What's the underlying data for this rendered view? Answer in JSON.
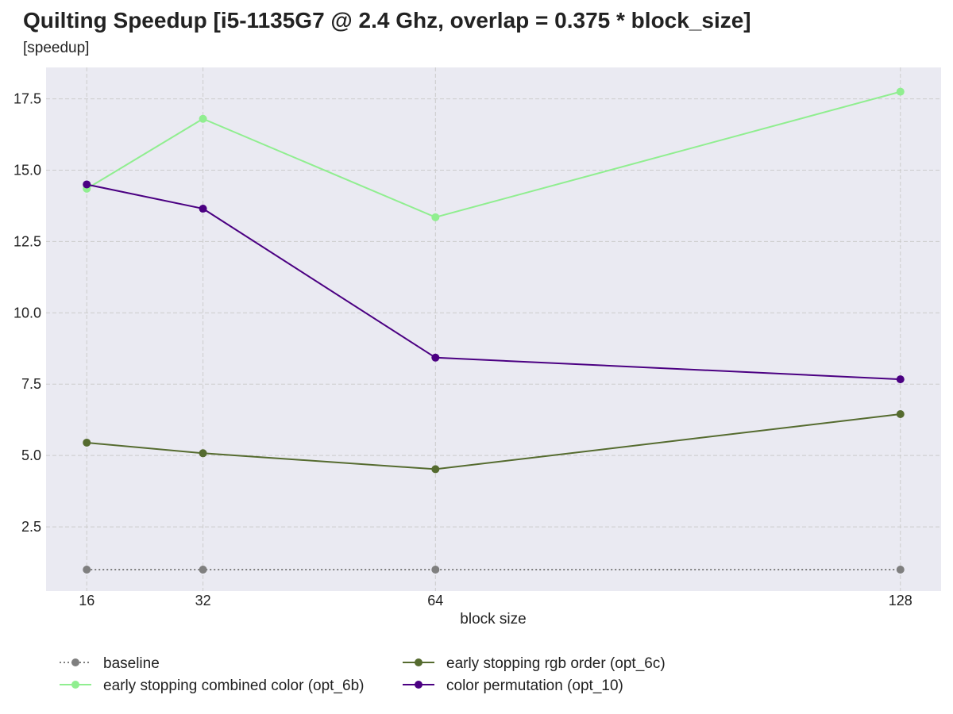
{
  "chart_data": {
    "type": "line",
    "title": "Quilting Speedup [i5-1135G7 @ 2.4 Ghz, overlap = 0.375 * block_size]",
    "ylabel": "[speedup]",
    "xlabel": "block size",
    "x": [
      16,
      32,
      64,
      128
    ],
    "xlim": [
      10.4,
      133.6
    ],
    "ylim": [
      0.25,
      18.6
    ],
    "yticks": [
      "2.5",
      "5.0",
      "7.5",
      "10.0",
      "12.5",
      "15.0",
      "17.5"
    ],
    "xticks": [
      "16",
      "32",
      "64",
      "128"
    ],
    "grid": true,
    "legend_position": "bottom",
    "series": [
      {
        "name": "baseline",
        "values": [
          1.0,
          1.0,
          1.0,
          1.0
        ],
        "color": "#7f7f7f",
        "style": "dotted"
      },
      {
        "name": "early stopping combined color (opt_6b)",
        "values": [
          14.35,
          16.8,
          13.35,
          17.75
        ],
        "color": "#90ee90",
        "style": "solid"
      },
      {
        "name": "early stopping rgb order (opt_6c)",
        "values": [
          5.45,
          5.08,
          4.52,
          6.45
        ],
        "color": "#556b2f",
        "style": "solid"
      },
      {
        "name": "color permutation (opt_10)",
        "values": [
          14.5,
          13.65,
          8.43,
          7.67
        ],
        "color": "#4b0082",
        "style": "solid"
      }
    ]
  },
  "colors": {
    "plot_background": "#eaeaf2",
    "grid": "#cccccc"
  }
}
